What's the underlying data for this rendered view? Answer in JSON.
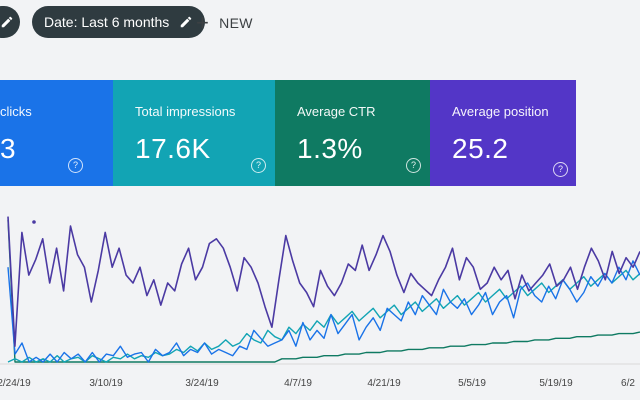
{
  "toolbar": {
    "date_filter_label": "Date: Last 6 months",
    "new_label": "NEW",
    "edit_icon": "pencil-icon",
    "plus_icon": "plus-icon"
  },
  "cards": [
    {
      "title": "clicks",
      "value": "3",
      "color": "#1a73e8"
    },
    {
      "title": "Total impressions",
      "value": "17.6K",
      "color": "#12a4b4"
    },
    {
      "title": "Average CTR",
      "value": "1.3%",
      "color": "#0f7a62"
    },
    {
      "title": "Average position",
      "value": "25.2",
      "color": "#5336c7"
    }
  ],
  "help_icon": "?",
  "chart_data": {
    "type": "line",
    "x_tick_labels": [
      "2/24/19",
      "3/10/19",
      "3/24/19",
      "4/7/19",
      "4/21/19",
      "5/5/19",
      "5/19/19",
      "6/2"
    ],
    "series": [
      {
        "name": "Average position",
        "color": "#4b3aa3",
        "values": [
          0.92,
          0.1,
          0.82,
          0.55,
          0.65,
          0.78,
          0.5,
          0.72,
          0.45,
          0.86,
          0.68,
          0.6,
          0.38,
          0.58,
          0.82,
          0.6,
          0.72,
          0.55,
          0.5,
          0.6,
          0.42,
          0.52,
          0.36,
          0.5,
          0.45,
          0.62,
          0.72,
          0.52,
          0.6,
          0.75,
          0.78,
          0.72,
          0.6,
          0.45,
          0.66,
          0.6,
          0.5,
          0.35,
          0.22,
          0.52,
          0.8,
          0.64,
          0.5,
          0.44,
          0.35,
          0.58,
          0.48,
          0.42,
          0.5,
          0.62,
          0.58,
          0.74,
          0.58,
          0.68,
          0.8,
          0.7,
          0.55,
          0.44,
          0.56,
          0.5,
          0.46,
          0.42,
          0.52,
          0.6,
          0.72,
          0.52,
          0.66,
          0.6,
          0.46,
          0.5,
          0.6,
          0.52,
          0.58,
          0.4,
          0.55,
          0.45,
          0.5,
          0.55,
          0.62,
          0.48,
          0.52,
          0.6,
          0.46,
          0.6,
          0.72,
          0.64,
          0.52,
          0.7,
          0.56,
          0.66,
          0.6,
          0.7
        ]
      },
      {
        "name": "Total impressions",
        "color": "#1a73e8",
        "values": [
          0.6,
          0.05,
          0.12,
          0.0,
          0.03,
          0.0,
          0.05,
          0.0,
          0.06,
          0.02,
          0.05,
          0.0,
          0.06,
          0.0,
          0.05,
          0.04,
          0.1,
          0.03,
          0.05,
          0.06,
          0.0,
          0.08,
          0.04,
          0.06,
          0.12,
          0.04,
          0.08,
          0.06,
          0.12,
          0.05,
          0.08,
          0.06,
          0.04,
          0.1,
          0.08,
          0.2,
          0.15,
          0.1,
          0.12,
          0.14,
          0.2,
          0.1,
          0.25,
          0.14,
          0.2,
          0.15,
          0.3,
          0.18,
          0.24,
          0.3,
          0.14,
          0.22,
          0.28,
          0.2,
          0.34,
          0.3,
          0.26,
          0.38,
          0.3,
          0.42,
          0.36,
          0.3,
          0.46,
          0.38,
          0.34,
          0.4,
          0.3,
          0.36,
          0.44,
          0.3,
          0.38,
          0.42,
          0.28,
          0.46,
          0.5,
          0.42,
          0.38,
          0.48,
          0.4,
          0.52,
          0.46,
          0.38,
          0.44,
          0.54,
          0.48,
          0.56,
          0.5,
          0.6,
          0.52,
          0.64,
          0.55
        ]
      },
      {
        "name": "Average CTR",
        "color": "#12a4b4",
        "values": [
          0.0,
          0.02,
          0.0,
          0.03,
          0.0,
          0.02,
          0.0,
          0.04,
          0.0,
          0.02,
          0.03,
          0.0,
          0.04,
          0.02,
          0.0,
          0.03,
          0.02,
          0.05,
          0.02,
          0.04,
          0.03,
          0.06,
          0.04,
          0.05,
          0.08,
          0.06,
          0.1,
          0.07,
          0.12,
          0.08,
          0.1,
          0.14,
          0.1,
          0.12,
          0.18,
          0.14,
          0.12,
          0.2,
          0.16,
          0.14,
          0.22,
          0.18,
          0.24,
          0.2,
          0.26,
          0.22,
          0.3,
          0.24,
          0.28,
          0.32,
          0.26,
          0.3,
          0.34,
          0.28,
          0.32,
          0.36,
          0.3,
          0.34,
          0.38,
          0.32,
          0.36,
          0.4,
          0.34,
          0.38,
          0.42,
          0.36,
          0.4,
          0.44,
          0.38,
          0.42,
          0.46,
          0.4,
          0.44,
          0.48,
          0.42,
          0.46,
          0.5,
          0.44,
          0.48,
          0.52,
          0.46,
          0.5,
          0.54,
          0.48,
          0.52,
          0.56,
          0.5,
          0.54,
          0.58,
          0.52,
          0.56
        ]
      },
      {
        "name": "clicks",
        "color": "#0f7a62",
        "values": [
          0.9,
          0.0,
          0.0,
          0.0,
          0.0,
          0.0,
          0.0,
          0.0,
          0.0,
          0.0,
          0.0,
          0.0,
          0.0,
          0.0,
          0.0,
          0.0,
          0.0,
          0.0,
          0.0,
          0.0,
          0.0,
          0.0,
          0.0,
          0.0,
          0.0,
          0.0,
          0.0,
          0.0,
          0.0,
          0.0,
          0.0,
          0.0,
          0.0,
          0.0,
          0.0,
          0.0,
          0.0,
          0.0,
          0.0,
          0.02,
          0.02,
          0.02,
          0.03,
          0.03,
          0.03,
          0.04,
          0.04,
          0.04,
          0.05,
          0.05,
          0.05,
          0.06,
          0.06,
          0.06,
          0.07,
          0.07,
          0.07,
          0.08,
          0.08,
          0.08,
          0.09,
          0.09,
          0.09,
          0.1,
          0.1,
          0.1,
          0.11,
          0.11,
          0.11,
          0.12,
          0.12,
          0.12,
          0.13,
          0.13,
          0.13,
          0.14,
          0.14,
          0.14,
          0.15,
          0.15,
          0.15,
          0.16,
          0.16,
          0.16,
          0.17,
          0.17,
          0.17,
          0.18,
          0.18,
          0.18,
          0.19
        ]
      }
    ],
    "grid": false,
    "legend": "none"
  }
}
